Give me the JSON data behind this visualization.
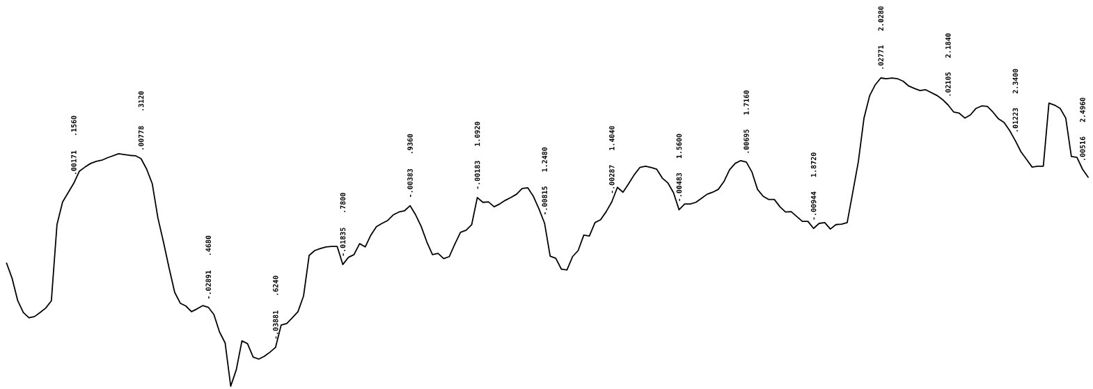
{
  "chart_data": {
    "type": "line",
    "color": "#000000",
    "categories": [
      null,
      null,
      null,
      null,
      null,
      null,
      null,
      null,
      null,
      null,
      null,
      null,
      null,
      null,
      null,
      null,
      null,
      null,
      null,
      null,
      null,
      null,
      null,
      null,
      null,
      null,
      null,
      null,
      null,
      null,
      null,
      null,
      null,
      null,
      null,
      null,
      null,
      null,
      null,
      null,
      null,
      null,
      null,
      null,
      null,
      null,
      null,
      null,
      null,
      null,
      null,
      null,
      null,
      null,
      null,
      null,
      null,
      null,
      null,
      null,
      null,
      null,
      null,
      null,
      null,
      null,
      null,
      null,
      null,
      null,
      null,
      null,
      null,
      null,
      null,
      null,
      null,
      null,
      null,
      null,
      null,
      null,
      null,
      null,
      null,
      null,
      null,
      null,
      null,
      null,
      null,
      null,
      null,
      null,
      null,
      null,
      null,
      null,
      null,
      null,
      null,
      null,
      null,
      null,
      null,
      null,
      null,
      null,
      null,
      null,
      null,
      null,
      null,
      null,
      null,
      null,
      null,
      null,
      null,
      null,
      null,
      null,
      null,
      null,
      null,
      null,
      null,
      null,
      null,
      null,
      null,
      null,
      null,
      null,
      null,
      null,
      null,
      null,
      null,
      null,
      null,
      null,
      null,
      null,
      null,
      null,
      null,
      null,
      null,
      null,
      null,
      null,
      null,
      null,
      null,
      null,
      null,
      null,
      null,
      null,
      null,
      null,
      null,
      null,
      null,
      null,
      null,
      null,
      null,
      null,
      null,
      null,
      null,
      null,
      null,
      null,
      null,
      null,
      null,
      null,
      null,
      null,
      null,
      null,
      null,
      null,
      null,
      null,
      null,
      null,
      null,
      null,
      null,
      null
    ],
    "values": [
      -0.018,
      -0.0218,
      -0.0273,
      -0.0302,
      -0.0315,
      -0.0312,
      -0.0302,
      -0.0291,
      -0.0273,
      -0.0085,
      -0.0029,
      -0.0006,
      0.00171,
      0.0047,
      0.0057,
      0.0066,
      0.0071,
      0.0074,
      0.008,
      0.0085,
      0.009,
      0.0088,
      0.0086,
      0.0085,
      0.00778,
      0.0052,
      0.0016,
      -0.0068,
      -0.0128,
      -0.0192,
      -0.0252,
      -0.0279,
      -0.0286,
      -0.03,
      -0.0293,
      -0.0285,
      -0.02891,
      -0.0307,
      -0.035,
      -0.0377,
      -0.0484,
      -0.0443,
      -0.0372,
      -0.0379,
      -0.0412,
      -0.0417,
      -0.041,
      -0.04,
      -0.03881,
      -0.0333,
      -0.0329,
      -0.0315,
      -0.03,
      -0.0261,
      -0.0161,
      -0.0149,
      -0.0144,
      -0.014,
      -0.0139,
      -0.0139,
      -0.01835,
      -0.0166,
      -0.0159,
      -0.0132,
      -0.014,
      -0.0111,
      -0.009,
      -0.0082,
      -0.0075,
      -0.0061,
      -0.0054,
      -0.0051,
      -0.00383,
      -0.0061,
      -0.009,
      -0.0128,
      -0.0159,
      -0.0156,
      -0.0169,
      -0.0164,
      -0.0133,
      -0.0104,
      -0.0099,
      -0.0085,
      -0.00183,
      -0.003,
      -0.0029,
      -0.0041,
      -0.0034,
      -0.0025,
      -0.0018,
      -0.001,
      0.0004,
      0.0006,
      -0.0015,
      -0.0046,
      -0.00815,
      -0.0163,
      -0.0168,
      -0.0195,
      -0.0197,
      -0.0164,
      -0.0149,
      -0.0111,
      -0.0113,
      -0.008,
      -0.0073,
      -0.0053,
      -0.00287,
      0.0007,
      -0.0005,
      0.0016,
      0.0038,
      0.0056,
      0.0059,
      0.0056,
      0.0052,
      0.003,
      0.0018,
      -0.0006,
      -0.00483,
      -0.0034,
      -0.0034,
      -0.003,
      -0.002,
      -0.001,
      -0.0005,
      0.0002,
      0.0021,
      0.005,
      0.0066,
      0.0073,
      0.00695,
      0.0045,
      0.0002,
      -0.0015,
      -0.0023,
      -0.0023,
      -0.0041,
      -0.0054,
      -0.0053,
      -0.0065,
      -0.0077,
      -0.0077,
      -0.00944,
      -0.0082,
      -0.008,
      -0.0096,
      -0.0085,
      -0.0084,
      -0.008,
      -0.0005,
      0.0071,
      0.0178,
      0.0233,
      0.026,
      0.02771,
      0.0275,
      0.0277,
      0.0275,
      0.0269,
      0.0257,
      0.0251,
      0.0246,
      0.0248,
      0.0241,
      0.0234,
      0.0224,
      0.02105,
      0.0193,
      0.019,
      0.0178,
      0.0186,
      0.0202,
      0.0208,
      0.0207,
      0.0193,
      0.0176,
      0.0167,
      0.0147,
      0.01223,
      0.0095,
      0.0076,
      0.0057,
      0.0059,
      0.0059,
      0.0215,
      0.021,
      0.0202,
      0.0178,
      0.0083,
      0.0081,
      0.00516,
      0.0032
    ],
    "value_labels": [
      null,
      null,
      null,
      null,
      null,
      null,
      null,
      null,
      null,
      null,
      null,
      null,
      ".00171    .1560",
      null,
      null,
      null,
      null,
      null,
      null,
      null,
      null,
      null,
      null,
      null,
      ".00778    .3120",
      null,
      null,
      null,
      null,
      null,
      null,
      null,
      null,
      null,
      null,
      null,
      "-.02891   .4680",
      null,
      null,
      null,
      null,
      null,
      null,
      null,
      null,
      null,
      null,
      null,
      "-.03881   .6240",
      null,
      null,
      null,
      null,
      null,
      null,
      null,
      null,
      null,
      null,
      null,
      "-.01835   .7800",
      null,
      null,
      null,
      null,
      null,
      null,
      null,
      null,
      null,
      null,
      null,
      "-.00383   .9360",
      null,
      null,
      null,
      null,
      null,
      null,
      null,
      null,
      null,
      null,
      null,
      "-.00183  1.0920",
      null,
      null,
      null,
      null,
      null,
      null,
      null,
      null,
      null,
      null,
      null,
      "-.00815  1.2480",
      null,
      null,
      null,
      null,
      null,
      null,
      null,
      null,
      null,
      null,
      null,
      "-.00287  1.4040",
      null,
      null,
      null,
      null,
      null,
      null,
      null,
      null,
      null,
      null,
      null,
      "-.00483  1.5600",
      null,
      null,
      null,
      null,
      null,
      null,
      null,
      null,
      null,
      null,
      null,
      ".00695   1.7160",
      null,
      null,
      null,
      null,
      null,
      null,
      null,
      null,
      null,
      null,
      null,
      "-.00944  1.8720",
      null,
      null,
      null,
      null,
      null,
      null,
      null,
      null,
      null,
      null,
      null,
      ".02771   2.0280",
      null,
      null,
      null,
      null,
      null,
      null,
      null,
      null,
      null,
      null,
      null,
      ".02105   2.1840",
      null,
      null,
      null,
      null,
      null,
      null,
      null,
      null,
      null,
      null,
      null,
      ".01223   2.3400",
      null,
      null,
      null,
      null,
      null,
      null,
      null,
      null,
      null,
      null,
      null,
      ".00516   2.4960",
      null
    ]
  }
}
